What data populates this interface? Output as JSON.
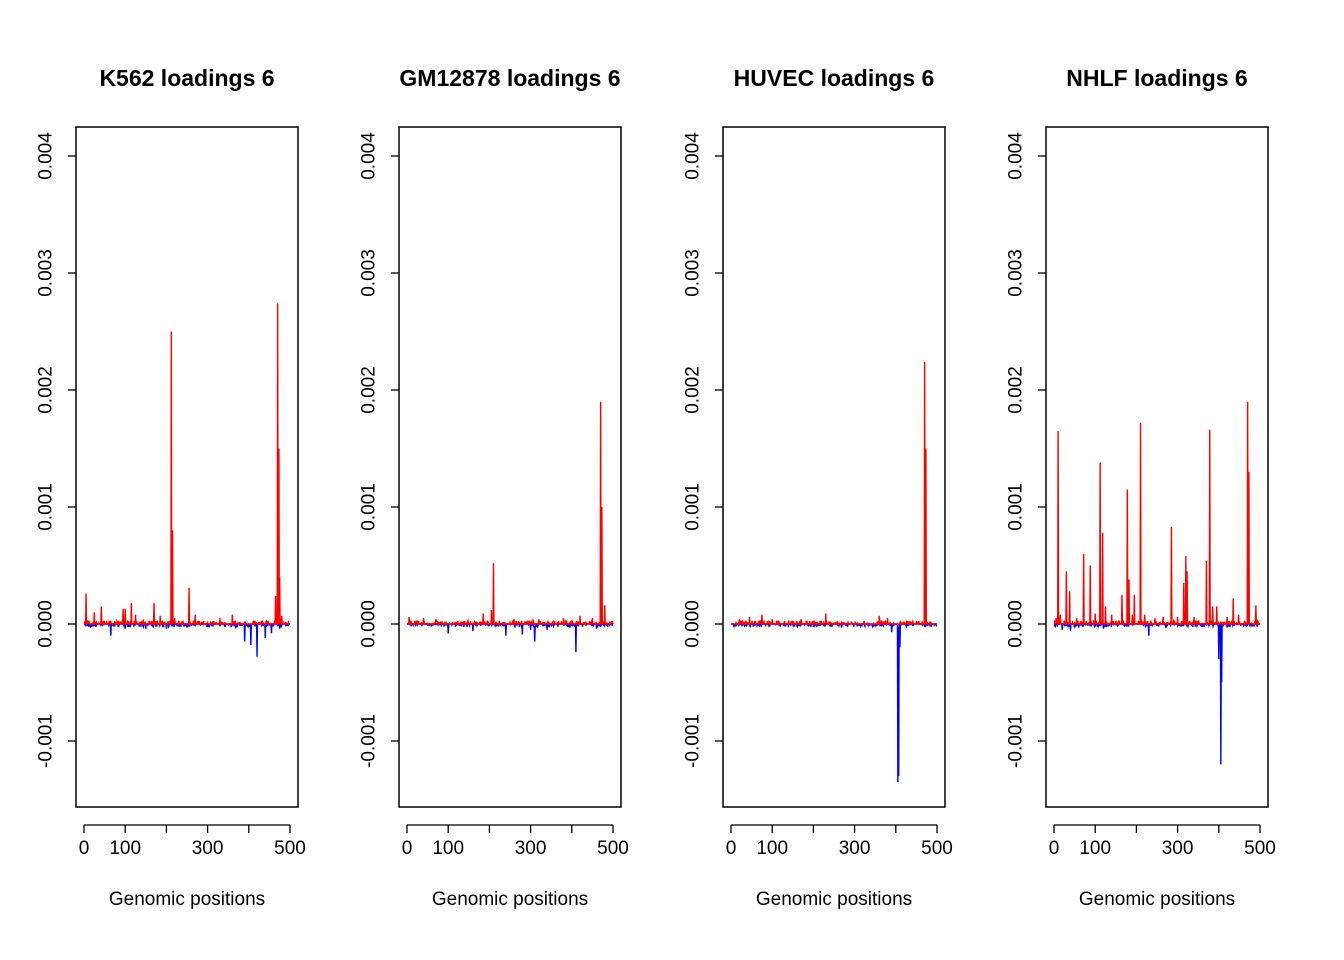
{
  "chart_data": [
    {
      "type": "line",
      "title": "K562 loadings 6",
      "xlabel": "Genomic positions",
      "ylabel": "",
      "xlim": [
        0,
        500
      ],
      "ylim": [
        -0.0015,
        0.0043
      ],
      "xticks": [
        0,
        100,
        200,
        300,
        400,
        500
      ],
      "xtick_labels": [
        "0",
        "100",
        "",
        "300",
        "",
        "500"
      ],
      "yticks": [
        -0.001,
        0.0,
        0.001,
        0.002,
        0.003,
        0.004
      ],
      "ytick_labels": [
        "-0.001",
        "0.000",
        "0.001",
        "0.002",
        "0.003",
        "0.004"
      ],
      "positive_color": "#ff0000",
      "negative_color": "#0000ff",
      "positive_peaks": [
        [
          5,
          0.00026
        ],
        [
          25,
          0.0001
        ],
        [
          42,
          0.00015
        ],
        [
          95,
          0.00013
        ],
        [
          100,
          0.00013
        ],
        [
          115,
          0.00018
        ],
        [
          125,
          8e-05
        ],
        [
          170,
          0.00018
        ],
        [
          185,
          7e-05
        ],
        [
          212,
          0.0025
        ],
        [
          215,
          0.0008
        ],
        [
          220,
          5e-05
        ],
        [
          255,
          0.00031
        ],
        [
          270,
          8e-05
        ],
        [
          330,
          5e-05
        ],
        [
          360,
          8e-05
        ],
        [
          465,
          0.00024
        ],
        [
          470,
          0.00274
        ],
        [
          473,
          0.0015
        ],
        [
          475,
          0.0004
        ],
        [
          480,
          7e-05
        ]
      ],
      "negative_peaks": [
        [
          65,
          -0.0001
        ],
        [
          100,
          -4e-05
        ],
        [
          150,
          -4e-05
        ],
        [
          200,
          -4e-05
        ],
        [
          250,
          -3e-05
        ],
        [
          390,
          -0.00015
        ],
        [
          405,
          -0.00018
        ],
        [
          420,
          -0.00028
        ],
        [
          440,
          -0.00012
        ],
        [
          455,
          -8e-05
        ],
        [
          475,
          -4e-05
        ]
      ]
    },
    {
      "type": "line",
      "title": "GM12878 loadings 6",
      "xlabel": "Genomic positions",
      "ylabel": "",
      "xlim": [
        0,
        500
      ],
      "ylim": [
        -0.0015,
        0.0043
      ],
      "xticks": [
        0,
        100,
        200,
        300,
        400,
        500
      ],
      "xtick_labels": [
        "0",
        "100",
        "",
        "300",
        "",
        "500"
      ],
      "yticks": [
        -0.001,
        0.0,
        0.001,
        0.002,
        0.003,
        0.004
      ],
      "ytick_labels": [
        "-0.001",
        "0.000",
        "0.001",
        "0.002",
        "0.003",
        "0.004"
      ],
      "positive_color": "#ff0000",
      "negative_color": "#0000ff",
      "positive_peaks": [
        [
          5,
          6e-05
        ],
        [
          40,
          5e-05
        ],
        [
          70,
          4e-05
        ],
        [
          185,
          9e-05
        ],
        [
          205,
          0.00012
        ],
        [
          210,
          0.00052
        ],
        [
          260,
          4e-05
        ],
        [
          320,
          4e-05
        ],
        [
          380,
          5e-05
        ],
        [
          420,
          7e-05
        ],
        [
          450,
          5e-05
        ],
        [
          470,
          0.0019
        ],
        [
          473,
          0.001
        ],
        [
          480,
          0.00016
        ]
      ],
      "negative_peaks": [
        [
          100,
          -8e-05
        ],
        [
          160,
          -6e-05
        ],
        [
          240,
          -0.0001
        ],
        [
          280,
          -9e-05
        ],
        [
          300,
          -5e-05
        ],
        [
          310,
          -0.00015
        ],
        [
          340,
          -5e-05
        ],
        [
          410,
          -0.00024
        ],
        [
          460,
          -4e-05
        ]
      ]
    },
    {
      "type": "line",
      "title": "HUVEC loadings 6",
      "xlabel": "Genomic positions",
      "ylabel": "",
      "xlim": [
        0,
        500
      ],
      "ylim": [
        -0.0015,
        0.0043
      ],
      "xticks": [
        0,
        100,
        200,
        300,
        400,
        500
      ],
      "xtick_labels": [
        "0",
        "100",
        "",
        "300",
        "",
        "500"
      ],
      "yticks": [
        -0.001,
        0.0,
        0.001,
        0.002,
        0.003,
        0.004
      ],
      "ytick_labels": [
        "-0.001",
        "0.000",
        "0.001",
        "0.002",
        "0.003",
        "0.004"
      ],
      "positive_color": "#ff0000",
      "negative_color": "#0000ff",
      "positive_peaks": [
        [
          20,
          4e-05
        ],
        [
          45,
          6e-05
        ],
        [
          75,
          8e-05
        ],
        [
          100,
          4e-05
        ],
        [
          140,
          3e-05
        ],
        [
          170,
          4e-05
        ],
        [
          230,
          9e-05
        ],
        [
          360,
          7e-05
        ],
        [
          380,
          5e-05
        ],
        [
          470,
          0.00224
        ],
        [
          473,
          0.0015
        ]
      ],
      "negative_peaks": [
        [
          390,
          -7e-05
        ],
        [
          405,
          -0.00135
        ],
        [
          407,
          -0.0013
        ],
        [
          410,
          -0.0002
        ]
      ]
    },
    {
      "type": "line",
      "title": "NHLF loadings 6",
      "xlabel": "Genomic positions",
      "ylabel": "",
      "xlim": [
        0,
        500
      ],
      "ylim": [
        -0.0015,
        0.0043
      ],
      "xticks": [
        0,
        100,
        200,
        300,
        400,
        500
      ],
      "xtick_labels": [
        "0",
        "100",
        "",
        "300",
        "",
        "500"
      ],
      "yticks": [
        -0.001,
        0.0,
        0.001,
        0.002,
        0.003,
        0.004
      ],
      "ytick_labels": [
        "-0.001",
        "0.000",
        "0.001",
        "0.002",
        "0.003",
        "0.004"
      ],
      "positive_color": "#ff0000",
      "negative_color": "#0000ff",
      "positive_peaks": [
        [
          5,
          5e-05
        ],
        [
          10,
          0.00165
        ],
        [
          15,
          8e-05
        ],
        [
          30,
          0.00045
        ],
        [
          38,
          0.00028
        ],
        [
          55,
          5e-05
        ],
        [
          72,
          0.0006
        ],
        [
          88,
          0.0005
        ],
        [
          100,
          9e-05
        ],
        [
          112,
          0.00138
        ],
        [
          118,
          0.00078
        ],
        [
          125,
          0.00015
        ],
        [
          140,
          8e-05
        ],
        [
          165,
          0.00025
        ],
        [
          178,
          0.00115
        ],
        [
          182,
          0.00038
        ],
        [
          190,
          8e-05
        ],
        [
          195,
          0.00025
        ],
        [
          210,
          0.00172
        ],
        [
          220,
          8e-05
        ],
        [
          245,
          5e-05
        ],
        [
          265,
          6e-05
        ],
        [
          285,
          0.00083
        ],
        [
          300,
          6e-05
        ],
        [
          315,
          0.00035
        ],
        [
          320,
          0.00058
        ],
        [
          323,
          0.00045
        ],
        [
          340,
          6e-05
        ],
        [
          370,
          0.00054
        ],
        [
          378,
          0.00166
        ],
        [
          385,
          0.00015
        ],
        [
          395,
          0.00015
        ],
        [
          420,
          6e-05
        ],
        [
          435,
          0.00022
        ],
        [
          448,
          8e-05
        ],
        [
          470,
          0.0019
        ],
        [
          473,
          0.0013
        ],
        [
          490,
          0.00016
        ]
      ],
      "negative_peaks": [
        [
          20,
          -5e-05
        ],
        [
          40,
          -6e-05
        ],
        [
          60,
          -3e-05
        ],
        [
          120,
          -4e-05
        ],
        [
          230,
          -0.0001
        ],
        [
          400,
          -0.0003
        ],
        [
          405,
          -0.0012
        ],
        [
          407,
          -0.0005
        ],
        [
          420,
          -3e-05
        ]
      ]
    }
  ]
}
